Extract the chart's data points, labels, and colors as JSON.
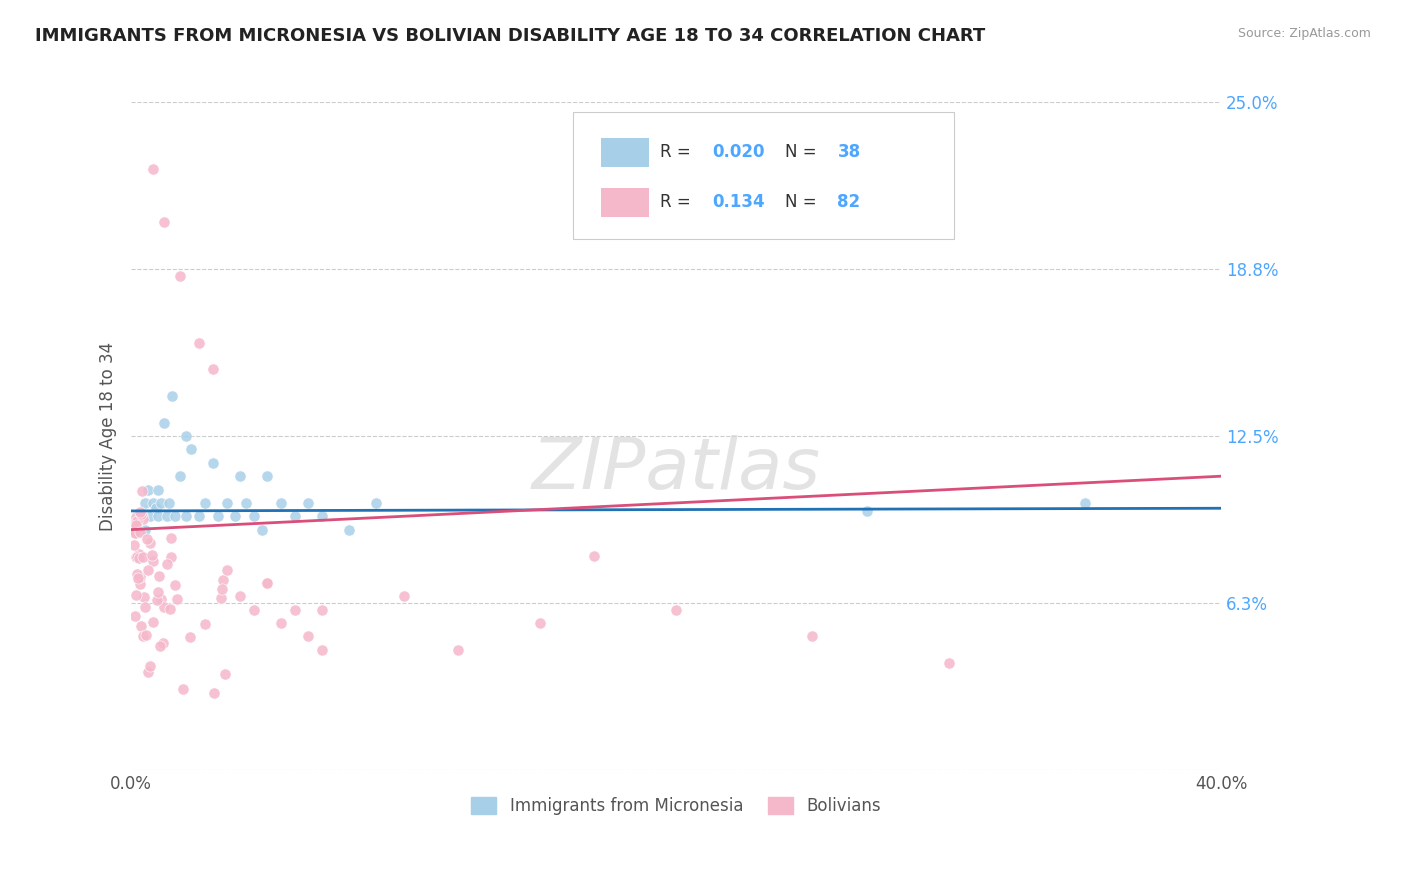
{
  "title": "IMMIGRANTS FROM MICRONESIA VS BOLIVIAN DISABILITY AGE 18 TO 34 CORRELATION CHART",
  "source": "Source: ZipAtlas.com",
  "ylabel": "Disability Age 18 to 34",
  "xlim": [
    0.0,
    0.4
  ],
  "ylim": [
    0.0,
    0.25
  ],
  "xtick_labels": [
    "0.0%",
    "40.0%"
  ],
  "ytick_vals": [
    0.0,
    0.0625,
    0.125,
    0.1875,
    0.25
  ],
  "ytick_display": [
    0.0625,
    0.125,
    0.1875,
    0.25
  ],
  "ytick_labels": [
    "6.3%",
    "12.5%",
    "18.8%",
    "25.0%"
  ],
  "legend_labels": [
    "Immigrants from Micronesia",
    "Bolivians"
  ],
  "R_micronesia": "0.020",
  "N_micronesia": "38",
  "R_bolivian": "0.134",
  "N_bolivian": "82",
  "color_micronesia": "#a8cfe8",
  "color_bolivian": "#f5b8cb",
  "color_micronesia_line": "#2171b5",
  "color_bolivian_line": "#d94f7a",
  "color_grid": "#cccccc",
  "color_title": "#222222",
  "color_source": "#999999",
  "color_axis_label": "#555555",
  "color_ytick": "#4da6ff",
  "color_legend_val": "#4da6ff",
  "color_legend_label": "#333333",
  "color_watermark": "#d8d8d8",
  "background_color": "#ffffff",
  "mic_line_y0": 0.097,
  "mic_line_y1": 0.098,
  "bol_line_y0": 0.09,
  "bol_line_y1": 0.11
}
